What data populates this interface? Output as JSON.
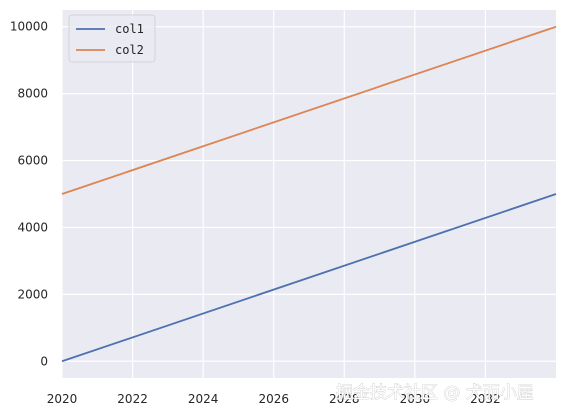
{
  "chart_data": {
    "type": "line",
    "x": [
      2020,
      2034
    ],
    "series": [
      {
        "name": "col1",
        "values": [
          0,
          5000
        ],
        "color": "#4c72b0"
      },
      {
        "name": "col2",
        "values": [
          5000,
          10000
        ],
        "color": "#dd8452"
      }
    ],
    "xlim": [
      2020,
      2034
    ],
    "ylim": [
      -500,
      10500
    ],
    "xticks": [
      2020,
      2022,
      2024,
      2026,
      2028,
      2030,
      2032
    ],
    "yticks": [
      0,
      2000,
      4000,
      6000,
      8000,
      10000
    ],
    "xtick_labels": [
      "2020",
      "2022",
      "2024",
      "2026",
      "2028",
      "2030",
      "2032"
    ],
    "ytick_labels": [
      "0",
      "2000",
      "4000",
      "6000",
      "8000",
      "10000"
    ],
    "title": "",
    "xlabel": "",
    "ylabel": "",
    "grid": true,
    "legend_position": "top-left",
    "background_color": "#eaeaf2",
    "grid_color": "#ffffff"
  },
  "watermark": "掘金技术社区 @ 犬而小屋"
}
